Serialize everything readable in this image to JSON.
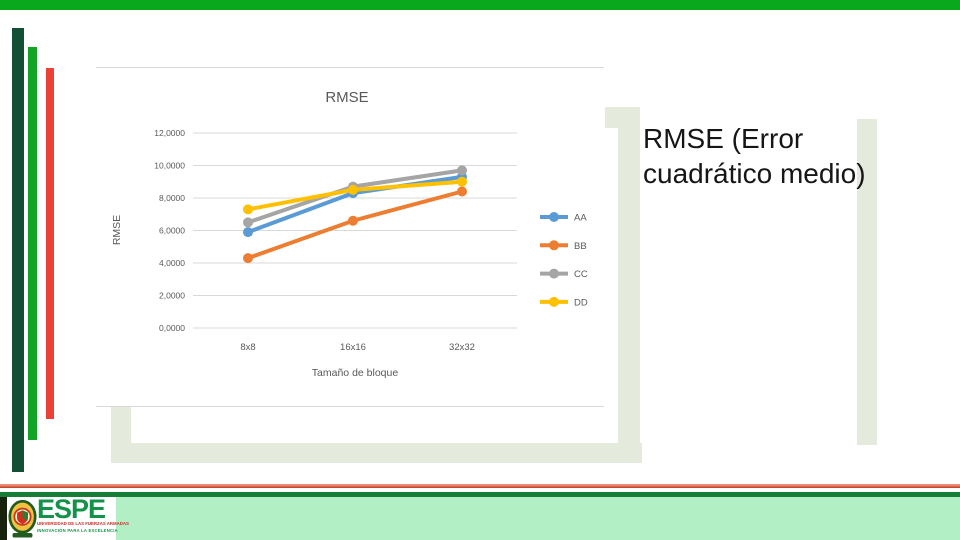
{
  "slide": {
    "heading": "RMSE (Error cuadrático medio)"
  },
  "chart_data": {
    "type": "line",
    "title": "RMSE",
    "xlabel": "Tamaño de bloque",
    "ylabel": "RMSE",
    "categories": [
      "8x8",
      "16x16",
      "32x32"
    ],
    "series": [
      {
        "name": "AA",
        "color": "#5B9BD5",
        "values": [
          5.9,
          8.3,
          9.3
        ]
      },
      {
        "name": "BB",
        "color": "#ED7D31",
        "values": [
          4.3,
          6.6,
          8.4
        ]
      },
      {
        "name": "CC",
        "color": "#A5A5A5",
        "values": [
          6.5,
          8.7,
          9.7
        ]
      },
      {
        "name": "DD",
        "color": "#FFC000",
        "values": [
          7.3,
          8.5,
          9.0
        ]
      }
    ],
    "ylim": [
      0,
      12
    ],
    "yticks": [
      {
        "value": 0,
        "label": "0,0000"
      },
      {
        "value": 2,
        "label": "2,0000"
      },
      {
        "value": 4,
        "label": "4,0000"
      },
      {
        "value": 6,
        "label": "6,0000"
      },
      {
        "value": 8,
        "label": "8,0000"
      },
      {
        "value": 10,
        "label": "10,0000"
      },
      {
        "value": 12,
        "label": "12,0000"
      }
    ],
    "grid": true,
    "legend_position": "right",
    "marker": "circle"
  },
  "footer": {
    "brand": "ESPE",
    "line1": "UNIVERSIDAD DE LAS FUERZAS ARMADAS",
    "line2": "INNOVACIÓN PARA LA EXCELENCIA"
  },
  "theme": {
    "topbar-green": "#0aa81c",
    "bar-dark-green": "#124f35",
    "bar-bright-green": "#12a525",
    "bar-red": "#e94339",
    "pale-green": "#e4ebdc",
    "footer-line-red": "#c2401f",
    "footer-line-green": "#187d39",
    "footer-mint": "#b2efc5",
    "espe-green": "#13934a",
    "espe-red": "#cf2a27",
    "chart-text": "#595959",
    "grid-color": "#d9d9d9",
    "heading-color": "#161616"
  }
}
